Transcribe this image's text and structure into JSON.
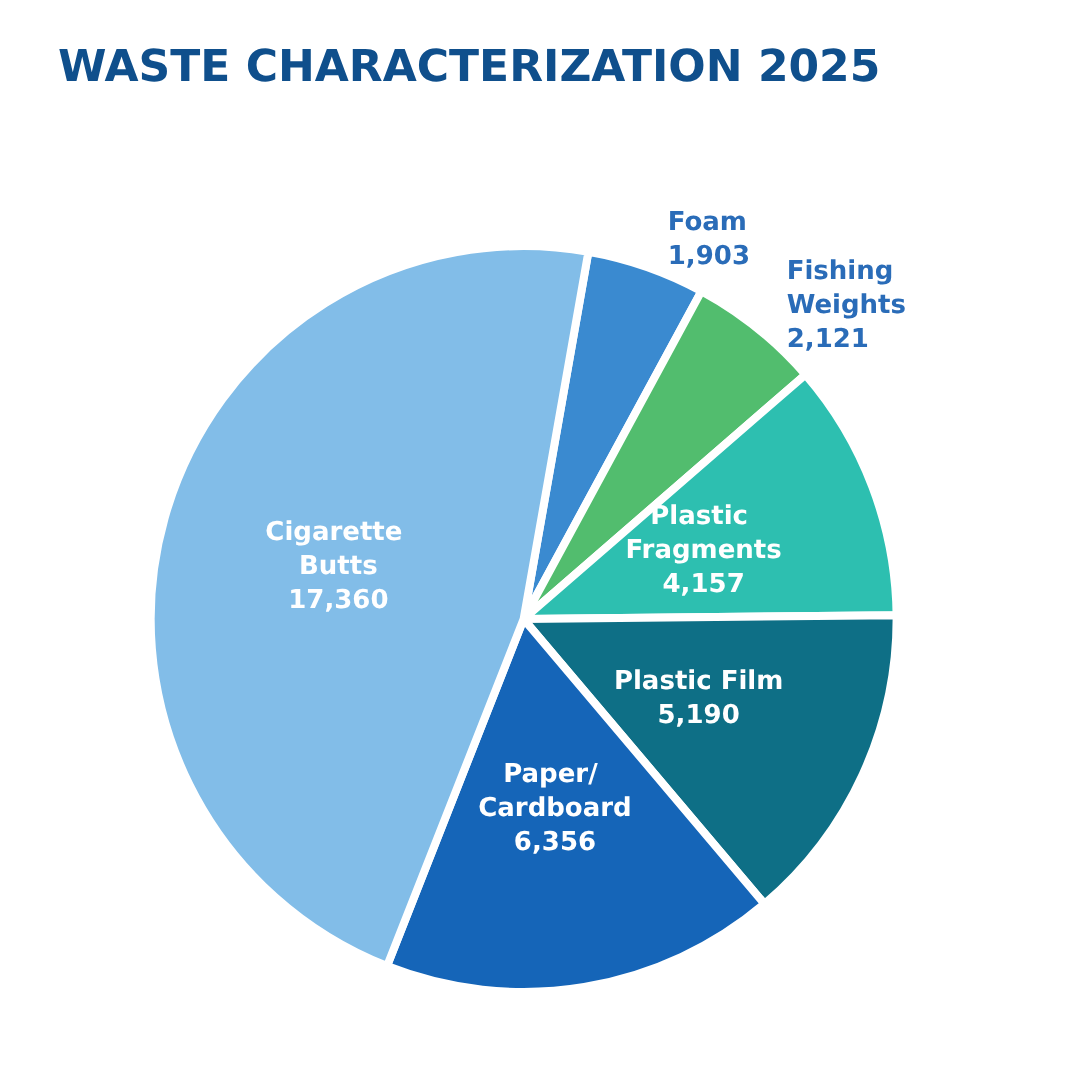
{
  "chart_data": {
    "type": "pie",
    "title": "WASTE CHARACTERIZATION 2025",
    "categories": [
      "Foam",
      "Fishing Weights",
      "Plastic Fragments",
      "Plastic Film",
      "Paper/ Cardboard",
      "Cigarette Butts"
    ],
    "values": [
      1903,
      2121,
      4157,
      5190,
      6356,
      17360
    ],
    "value_labels": [
      "1,903",
      "2,121",
      "4,157",
      "5,190",
      "6,356",
      "17,360"
    ],
    "colors": [
      "#3a8ad0",
      "#52bd6e",
      "#2dbfb0",
      "#0e6f86",
      "#1565b8",
      "#82bde8"
    ],
    "legend": false
  }
}
